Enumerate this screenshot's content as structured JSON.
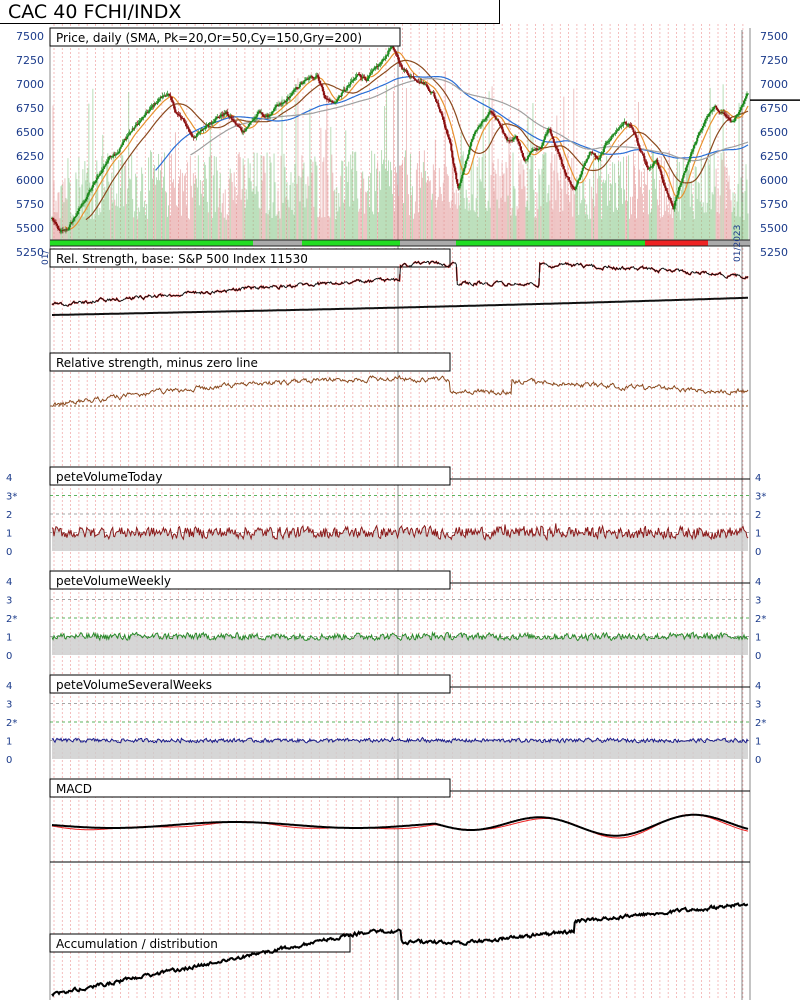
{
  "title": "CAC 40 FCHI/INDX",
  "chart_data": [
    {
      "type": "candlestick",
      "panel": "price",
      "label": "Price, daily (SMA, Pk=20,Or=50,Cy=150,Gry=200)",
      "y_ticks": [
        5250,
        5500,
        5750,
        6000,
        6250,
        6500,
        6750,
        7000,
        7250,
        7500
      ],
      "ylim": [
        5250,
        7560
      ],
      "approx_close_path": [
        5600,
        5450,
        5500,
        5650,
        5800,
        5950,
        6100,
        6250,
        6300,
        6450,
        6550,
        6650,
        6750,
        6850,
        6900,
        6700,
        6600,
        6450,
        6500,
        6600,
        6650,
        6700,
        6600,
        6500,
        6600,
        6700,
        6650,
        6750,
        6800,
        6900,
        7000,
        7050,
        7100,
        6850,
        6800,
        6900,
        7000,
        7100,
        7050,
        7150,
        7250,
        7400,
        7200,
        7100,
        7050,
        7000,
        6900,
        6700,
        6400,
        5900,
        6200,
        6500,
        6600,
        6700,
        6600,
        6400,
        6450,
        6200,
        6300,
        6350,
        6550,
        6300,
        6050,
        5900,
        6100,
        6300,
        6200,
        6400,
        6500,
        6600,
        6550,
        6300,
        6100,
        6200,
        5900,
        5700,
        6000,
        6250,
        6450,
        6650,
        6750,
        6700,
        6600,
        6700,
        6900
      ],
      "last_value_marker": 6830,
      "series": [
        {
          "name": "Pk",
          "color": "#e8922e",
          "period": 20
        },
        {
          "name": "Or",
          "color": "#8b4a1e",
          "period": 50
        },
        {
          "name": "Cy",
          "color": "#2a6fd6",
          "period": 150
        },
        {
          "name": "Gry",
          "color": "#a0a0a0",
          "period": 200
        }
      ],
      "trend_strip": {
        "colors": [
          "#22dd22",
          "#aaaaaa",
          "#22dd22",
          "#aaaaaa",
          "#22dd22",
          "#ee2222",
          "#aaaaaa",
          "#22dd22"
        ],
        "breaks": [
          0,
          0.29,
          0.36,
          0.5,
          0.58,
          0.85,
          0.94,
          1
        ]
      }
    },
    {
      "type": "line",
      "panel": "relative_strength",
      "label": "Rel. Strength, base: S&P 500 Index 11530"
    },
    {
      "type": "line",
      "panel": "relative_strength_minus_zero",
      "label": "Relative strength, minus zero line"
    },
    {
      "type": "line",
      "panel": "peteVolumeToday",
      "label": "peteVolumeToday",
      "y_ticks": [
        "0",
        "1",
        "2",
        "3*",
        "4"
      ]
    },
    {
      "type": "line",
      "panel": "peteVolumeWeekly",
      "label": "peteVolumeWeekly",
      "y_ticks": [
        "0",
        "1",
        "2*",
        "3",
        "4"
      ]
    },
    {
      "type": "line",
      "panel": "peteVolumeSeveralWeeks",
      "label": "peteVolumeSeveralWeeks",
      "y_ticks": [
        "0",
        "1",
        "2*",
        "3",
        "4"
      ]
    },
    {
      "type": "line",
      "panel": "macd",
      "label": "MACD"
    },
    {
      "type": "line",
      "panel": "accumulation",
      "label": "Accumulation / distribution"
    }
  ],
  "x_axis_fragments": [
    "01/",
    "01/",
    "01/2023"
  ],
  "colors": {
    "candle_up": "#1f8a1f",
    "candle_down": "#8b1010",
    "grid_red": "#f0a0a0",
    "axis_text": "#1a3a8a",
    "vol_today": "#8b1a1a",
    "vol_weekly": "#2a8a2a",
    "vol_several": "#1a1a8a",
    "rs_line": "#111111",
    "rs_red": "#ee2222",
    "rs_zero": "#8b4a1e",
    "macd_main": "#000000",
    "macd_signal": "#ee2222"
  }
}
